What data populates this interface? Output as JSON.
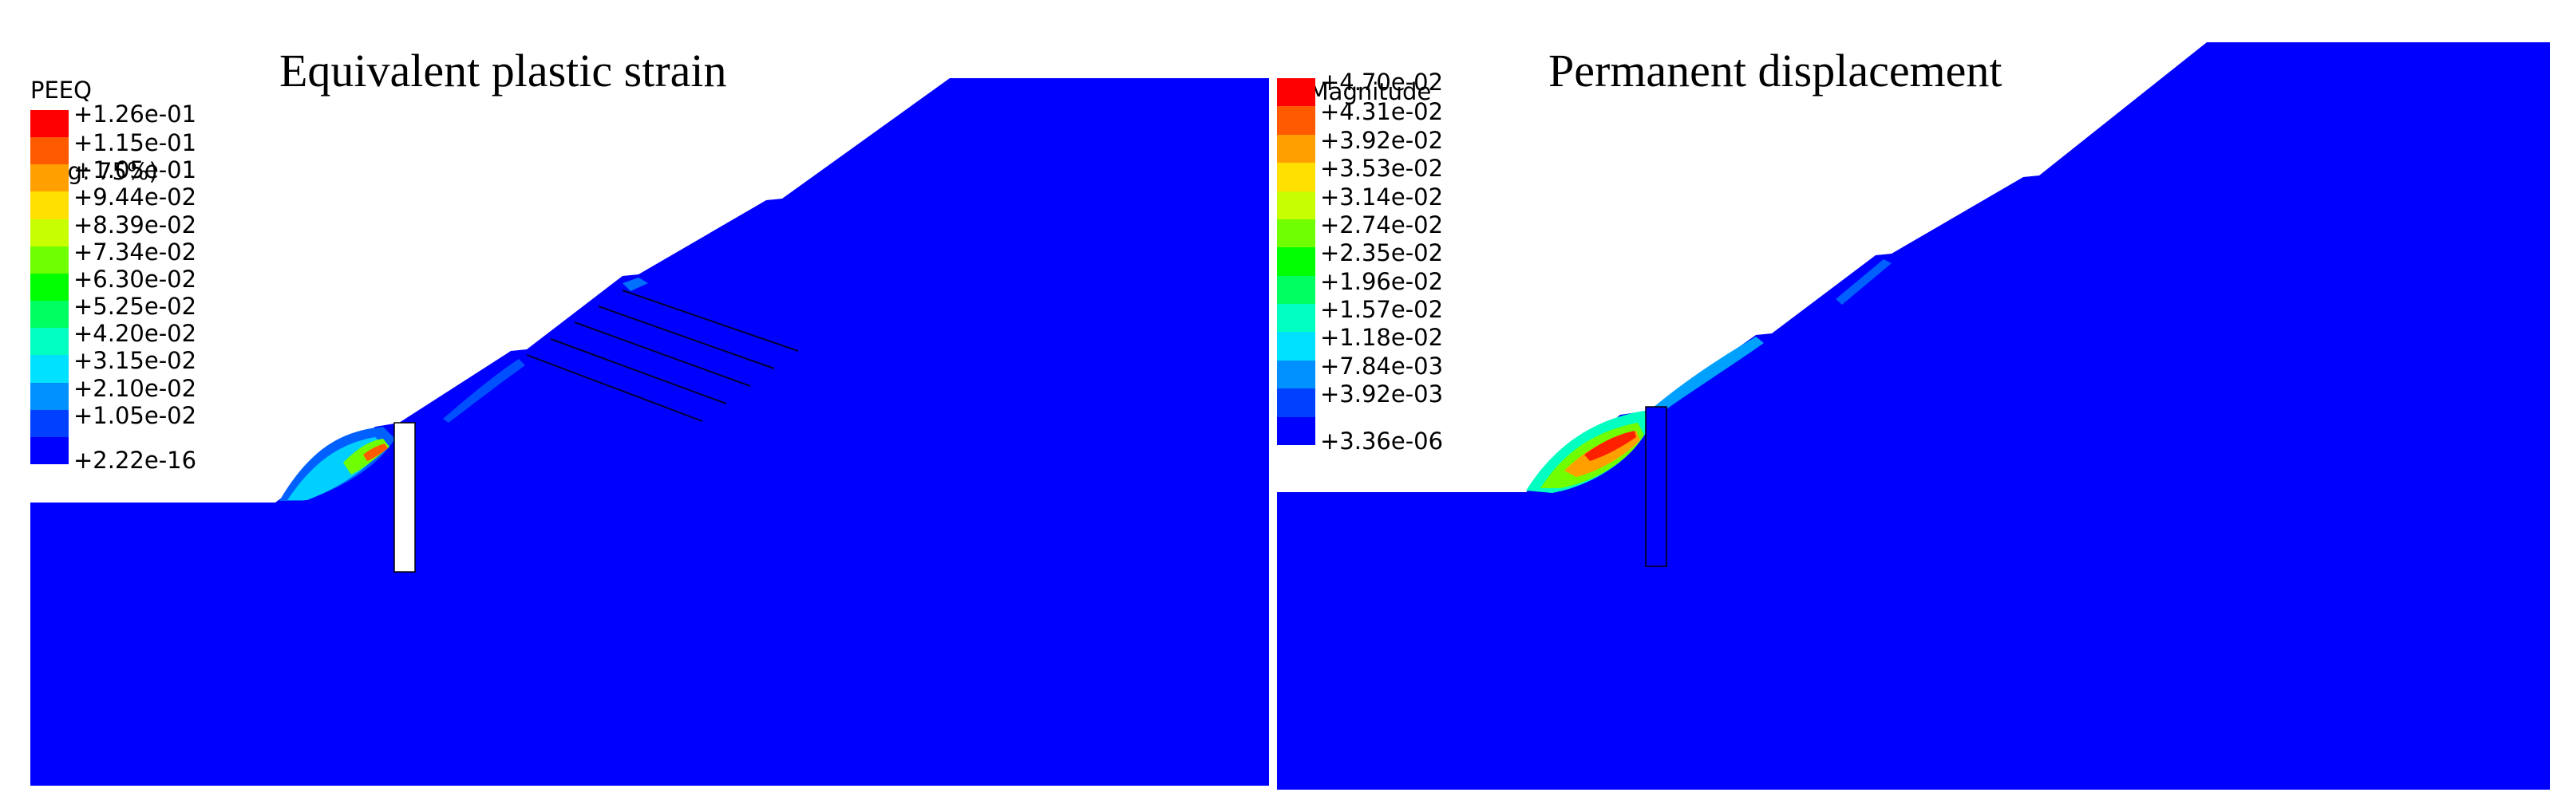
{
  "panels": [
    {
      "title": "Equivalent plastic strain",
      "legend_title_line1": "PEEQ",
      "legend_title_line2": "(Avg: 75%)",
      "legend_values": [
        "+1.26e-01",
        "+1.15e-01",
        "+1.05e-01",
        "+9.44e-02",
        "+8.39e-02",
        "+7.34e-02",
        "+6.30e-02",
        "+5.25e-02",
        "+4.20e-02",
        "+3.15e-02",
        "+2.10e-02",
        "+1.05e-02",
        "+2.22e-16"
      ],
      "legend_colors": [
        "#ff0000",
        "#ff5a00",
        "#ffa000",
        "#ffe000",
        "#c8ff00",
        "#70ff00",
        "#00ff00",
        "#00ff60",
        "#00ffc0",
        "#00e0ff",
        "#0090ff",
        "#0040ff",
        "#0000ff"
      ]
    },
    {
      "title": "Permanent displacement",
      "legend_title_line1": "U, Magnitude",
      "legend_title_line2": "",
      "legend_values": [
        "+4.70e-02",
        "+4.31e-02",
        "+3.92e-02",
        "+3.53e-02",
        "+3.14e-02",
        "+2.74e-02",
        "+2.35e-02",
        "+1.96e-02",
        "+1.57e-02",
        "+1.18e-02",
        "+7.84e-03",
        "+3.92e-03",
        "+3.36e-06"
      ],
      "legend_colors": [
        "#ff0000",
        "#ff5a00",
        "#ffa000",
        "#ffe000",
        "#c8ff00",
        "#70ff00",
        "#00ff00",
        "#00ff60",
        "#00ffc0",
        "#00e0ff",
        "#0090ff",
        "#0040ff",
        "#0000ff"
      ]
    }
  ],
  "colors": {
    "slope": "#0000ff",
    "pile": "#ffffff",
    "anchor_line": "#000033"
  }
}
